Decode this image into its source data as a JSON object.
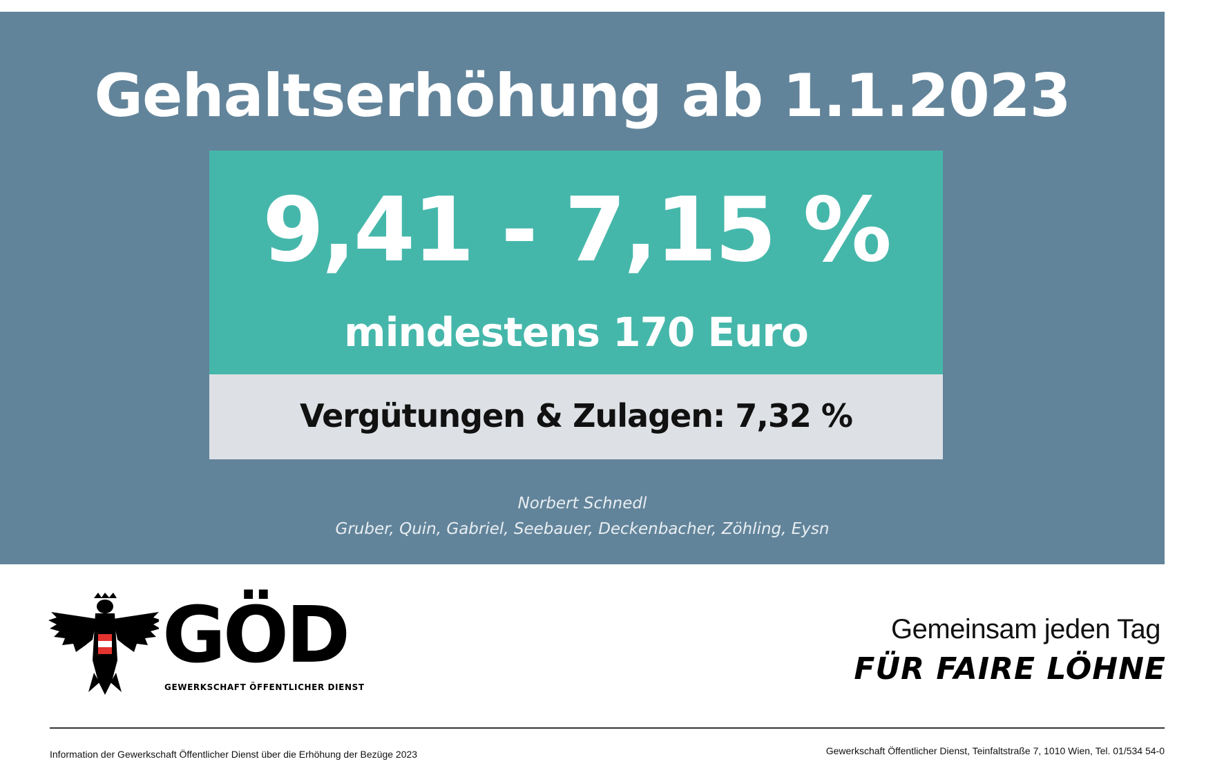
{
  "banner": {
    "headline": "Gehaltserhöhung ab 1.1.2023",
    "rate_range": "9,41 - 7,15  %",
    "minimum": "mindestens 170 Euro",
    "extra": "Vergütungen & Zulagen: 7,32 %",
    "negotiators_line1": "Norbert Schnedl",
    "negotiators_line2": "Gruber, Quin, Gabriel, Seebauer, Deckenbacher,  Zöhling, Eysn"
  },
  "logo": {
    "wordmark": "GÖD",
    "subtitle": "GEWERKSCHAFT ÖFFENTLICHER DIENST",
    "icon": "eagle-coat-of-arms-icon"
  },
  "slogan": {
    "line1": "Gemeinsam jeden Tag",
    "line2": "FÜR FAIRE LÖHNE"
  },
  "footer": {
    "left": "Information der Gewerkschaft Öffentlicher Dienst über die Erhöhung der Bezüge 2023",
    "right": "Gewerkschaft Öffentlicher Dienst, Teinfaltstraße 7, 1010 Wien, Tel. 01/534 54-0"
  },
  "colors": {
    "banner_bg": "#62849a",
    "rate_box_bg": "#45b7aa",
    "extra_box_bg": "#dde0e4",
    "austria_red": "#e3342f"
  }
}
